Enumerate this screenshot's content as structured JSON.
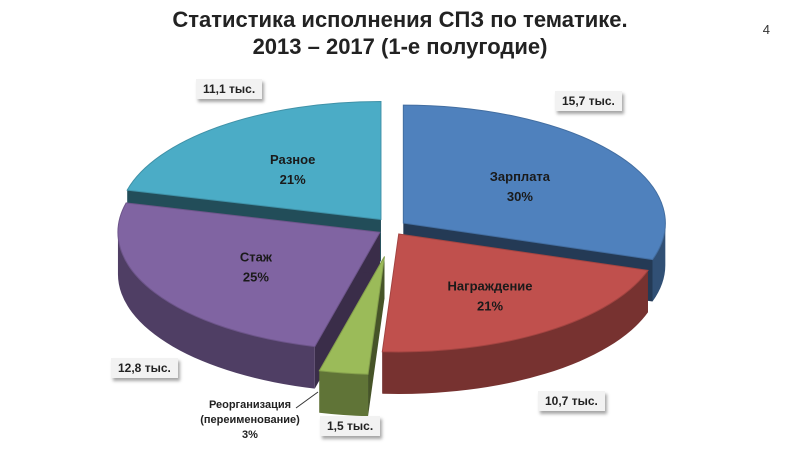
{
  "page_number": "4",
  "chart_data": {
    "type": "pie",
    "title_line1": "Статистика исполнения СПЗ по тематике.",
    "title_line2": "2013 – 2017 (1-е полугодие)",
    "slices": [
      {
        "name": "Зарплата",
        "percent": 30,
        "percent_label": "30%",
        "count_label": "15,7 тыс.",
        "color": "#4f81bd"
      },
      {
        "name": "Награждение",
        "percent": 21,
        "percent_label": "21%",
        "count_label": "10,7 тыс.",
        "color": "#c0504d"
      },
      {
        "name": "Реорганизация\n(переименование)",
        "percent": 3,
        "percent_label": "3%",
        "count_label": "1,5 тыс.",
        "color": "#9bbb59"
      },
      {
        "name": "Стаж",
        "percent": 25,
        "percent_label": "25%",
        "count_label": "12,8 тыс.",
        "color": "#8064a2"
      },
      {
        "name": "Разное",
        "percent": 21,
        "percent_label": "21%",
        "count_label": "11,1 тыс.",
        "color": "#4bacc6"
      }
    ]
  }
}
